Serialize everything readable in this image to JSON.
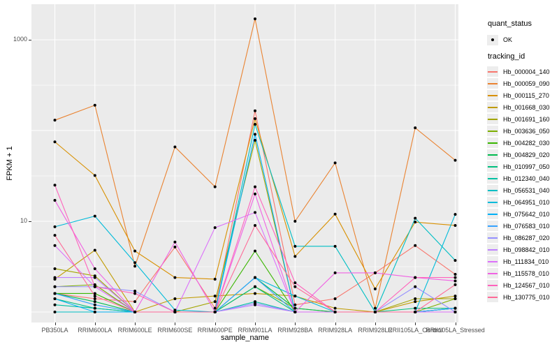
{
  "figure": {
    "y_axis": {
      "title": "FPKM + 1",
      "tick_labels": [
        "1000",
        "10"
      ]
    },
    "x_axis": {
      "title": "sample_name"
    },
    "legend": {
      "quant_status_title": "quant_status",
      "quant_status_item": "OK",
      "tracking_id_title": "tracking_id"
    },
    "colors": {
      "panel_bg": "#EBEBEB",
      "grid": "#FFFFFF",
      "point": "#000000",
      "legend_key_bg": "#EDEDED",
      "tick_text": "#4D4D4D"
    }
  },
  "chart_data": {
    "type": "line",
    "title": "",
    "xlabel": "sample_name",
    "ylabel": "FPKM + 1",
    "y_scale": "log10",
    "ylim": [
      1,
      2300
    ],
    "y_major_gridlines": [
      1,
      10,
      100,
      1000
    ],
    "y_minor_gridlines": [
      3.16,
      31.6,
      316
    ],
    "y_labeled_ticks": [
      1000,
      10
    ],
    "grid": true,
    "legend_position": "right",
    "point_marker": "black dot (quant_status OK)",
    "categories": [
      "PB350LA",
      "RRIM600LA",
      "RRIM600LE",
      "RRIM600SE",
      "RRIM600PE",
      "RRIM901LA",
      "RRIM928BA",
      "RRIM928LA",
      "RRIM928LE",
      "RRII105LA_Control",
      "RRII105LA_Stressed"
    ],
    "series": [
      {
        "name": "Hb_000004_140",
        "color": "#F8766D",
        "values": [
          1.6,
          1.4,
          1.3,
          5.2,
          1.1,
          165,
          1.2,
          1.4,
          2.7,
          5.4,
          2.6
        ]
      },
      {
        "name": "Hb_000059_090",
        "color": "#EA8331",
        "values": [
          130,
          190,
          3.2,
          66,
          24,
          1700,
          10,
          44,
          1.1,
          107,
          47
        ]
      },
      {
        "name": "Hb_000115_270",
        "color": "#D89000",
        "values": [
          75,
          32,
          4.7,
          2.4,
          2.3,
          135,
          4.1,
          12,
          1.8,
          9.8,
          9.0
        ]
      },
      {
        "name": "Hb_001668_030",
        "color": "#C09B00",
        "values": [
          2.3,
          4.8,
          1.0,
          1.4,
          1.5,
          1.6,
          1.5,
          1.1,
          1.0,
          1.3,
          1.5
        ]
      },
      {
        "name": "Hb_001691_160",
        "color": "#A3A500",
        "values": [
          3.0,
          2.5,
          1.0,
          1.0,
          1.3,
          78,
          1.0,
          1.0,
          1.0,
          1.4,
          1.4
        ]
      },
      {
        "name": "Hb_003636_050",
        "color": "#7CAE00",
        "values": [
          1.9,
          2.0,
          1.0,
          1.0,
          1.0,
          1.9,
          1.1,
          1.0,
          1.0,
          1.0,
          1.4
        ]
      },
      {
        "name": "Hb_004282_030",
        "color": "#39B600",
        "values": [
          1.6,
          1.6,
          1.0,
          1.0,
          1.0,
          4.7,
          1.0,
          1.0,
          1.0,
          1.0,
          1.1
        ]
      },
      {
        "name": "Hb_004829_020",
        "color": "#00BB4E",
        "values": [
          1.6,
          1.3,
          1.0,
          1.0,
          1.0,
          2.4,
          1.1,
          1.0,
          1.0,
          1.0,
          1.1
        ]
      },
      {
        "name": "Hb_010997_050",
        "color": "#00BF7D",
        "values": [
          1.4,
          1.1,
          1.0,
          1.0,
          1.0,
          1.9,
          1.0,
          1.0,
          1.0,
          1.1,
          1.1
        ]
      },
      {
        "name": "Hb_012340_040",
        "color": "#00C1A3",
        "values": [
          1.2,
          1.1,
          1.0,
          1.0,
          1.0,
          1.3,
          1.0,
          1.0,
          1.0,
          1.0,
          1.0
        ]
      },
      {
        "name": "Hb_056531_040",
        "color": "#00BFC4",
        "values": [
          1.0,
          1.0,
          1.0,
          1.0,
          1.0,
          117,
          5.3,
          5.3,
          1.0,
          10.8,
          3.7
        ]
      },
      {
        "name": "Hb_064951_010",
        "color": "#00BBDA",
        "values": [
          8.7,
          11.4,
          3.5,
          1.05,
          1.0,
          2.4,
          1.5,
          1.0,
          1.0,
          1.0,
          11.9
        ]
      },
      {
        "name": "Hb_075642_010",
        "color": "#00B0F6",
        "values": [
          1.4,
          1.0,
          1.0,
          1.0,
          1.0,
          91,
          1.0,
          1.0,
          1.0,
          1.0,
          1.1
        ]
      },
      {
        "name": "Hb_076583_010",
        "color": "#35A2FF",
        "values": [
          1.6,
          1.2,
          1.0,
          1.0,
          1.0,
          2.4,
          1.0,
          1.0,
          1.0,
          1.0,
          1.1
        ]
      },
      {
        "name": "Hb_086287_020",
        "color": "#9590FF",
        "values": [
          1.9,
          1.9,
          1.7,
          1.0,
          1.0,
          1.25,
          1.0,
          1.0,
          1.0,
          1.9,
          1.0
        ]
      },
      {
        "name": "Hb_098842_010",
        "color": "#BF80FF",
        "values": [
          2.4,
          2.4,
          1.0,
          1.0,
          1.0,
          1.2,
          1.0,
          1.0,
          1.0,
          1.0,
          1.0
        ]
      },
      {
        "name": "Hb_111834_010",
        "color": "#DC71FA",
        "values": [
          5.4,
          1.9,
          1.0,
          1.0,
          8.5,
          12.5,
          1.0,
          1.0,
          1.0,
          1.0,
          1.0
        ]
      },
      {
        "name": "Hb_115578_010",
        "color": "#F062E3",
        "values": [
          17,
          3.0,
          1.0,
          5.9,
          1.0,
          20,
          1.0,
          2.7,
          2.7,
          2.4,
          2.2
        ]
      },
      {
        "name": "Hb_124567_010",
        "color": "#FF62BC",
        "values": [
          25,
          1.9,
          1.6,
          1.0,
          1.0,
          24,
          2.1,
          1.0,
          1.0,
          2.4,
          2.4
        ]
      },
      {
        "name": "Hb_130775_010",
        "color": "#FF6A98",
        "values": [
          7.0,
          1.5,
          1.0,
          1.0,
          1.0,
          9.0,
          1.9,
          1.0,
          1.0,
          1.0,
          2.0
        ]
      }
    ]
  }
}
